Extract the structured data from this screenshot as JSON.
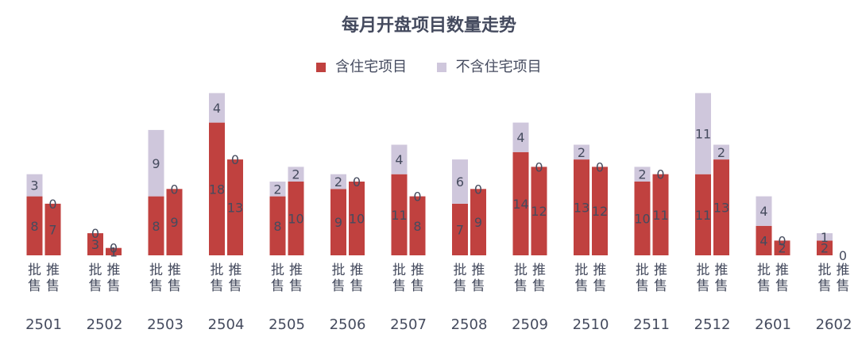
{
  "chart_data": {
    "type": "bar",
    "title": "每月开盘项目数量走势",
    "legend_position": "top",
    "stacked": true,
    "categories": [
      "2501",
      "2502",
      "2503",
      "2504",
      "2505",
      "2506",
      "2507",
      "2508",
      "2509",
      "2510",
      "2511",
      "2512",
      "2601",
      "2602"
    ],
    "subcategories": [
      "批售",
      "推售"
    ],
    "series": [
      {
        "name": "含住宅项目",
        "color": "#c0413f",
        "values": [
          [
            8,
            7
          ],
          [
            3,
            1
          ],
          [
            8,
            9
          ],
          [
            18,
            13
          ],
          [
            8,
            10
          ],
          [
            9,
            10
          ],
          [
            11,
            8
          ],
          [
            7,
            9
          ],
          [
            14,
            12
          ],
          [
            13,
            12
          ],
          [
            10,
            11
          ],
          [
            11,
            13
          ],
          [
            4,
            2
          ],
          [
            2,
            0
          ]
        ]
      },
      {
        "name": "不含住宅项目",
        "color": "#cfc7dc",
        "values": [
          [
            3,
            0
          ],
          [
            0,
            0
          ],
          [
            9,
            0
          ],
          [
            4,
            0
          ],
          [
            2,
            2
          ],
          [
            2,
            0
          ],
          [
            4,
            0
          ],
          [
            6,
            0
          ],
          [
            4,
            0
          ],
          [
            2,
            0
          ],
          [
            2,
            0
          ],
          [
            11,
            2
          ],
          [
            4,
            0
          ],
          [
            1,
            0
          ]
        ]
      }
    ],
    "grid": false
  }
}
